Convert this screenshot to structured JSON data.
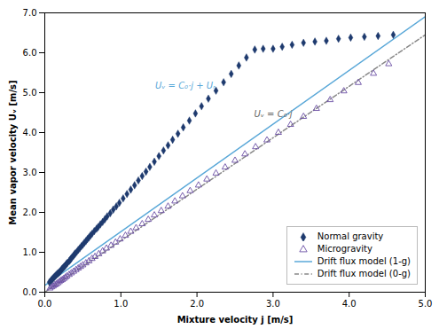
{
  "chart_data": {
    "type": "scatter",
    "xlabel": "Mixture velocity j [m/s]",
    "ylabel": "Mean vapor velocity Uᵥ [m/s]",
    "xlim": [
      0,
      5
    ],
    "ylim": [
      0,
      7
    ],
    "xticks": [
      0,
      1,
      2,
      3,
      4,
      5
    ],
    "yticks": [
      0,
      1,
      2,
      3,
      4,
      5,
      6,
      7
    ],
    "grid": false,
    "legend": "lower right",
    "annotations": [
      {
        "text": "Uᵥ = C₀·j + Uᵣ",
        "x": 1.45,
        "y": 5.1,
        "color": "#5aa8d8"
      },
      {
        "text": "Uᵥ = C₀·j",
        "x": 2.75,
        "y": 4.38,
        "color": "#666666"
      }
    ],
    "series": [
      {
        "name": "Normal gravity",
        "type": "scatter",
        "marker": "diamond",
        "color": "#1e3a6e",
        "x": [
          0.06,
          0.08,
          0.09,
          0.1,
          0.11,
          0.12,
          0.13,
          0.14,
          0.15,
          0.16,
          0.17,
          0.18,
          0.19,
          0.2,
          0.21,
          0.22,
          0.23,
          0.24,
          0.25,
          0.26,
          0.27,
          0.28,
          0.29,
          0.3,
          0.32,
          0.33,
          0.34,
          0.35,
          0.36,
          0.38,
          0.39,
          0.4,
          0.42,
          0.44,
          0.46,
          0.48,
          0.5,
          0.52,
          0.54,
          0.56,
          0.58,
          0.6,
          0.62,
          0.65,
          0.68,
          0.7,
          0.73,
          0.76,
          0.79,
          0.82,
          0.86,
          0.9,
          0.94,
          0.98,
          1.03,
          1.08,
          1.13,
          1.18,
          1.23,
          1.28,
          1.33,
          1.38,
          1.44,
          1.5,
          1.56,
          1.62,
          1.68,
          1.75,
          1.82,
          1.9,
          1.98,
          2.06,
          2.15,
          2.25,
          2.35,
          2.45,
          2.55,
          2.65,
          2.76,
          2.87,
          3.0,
          3.12,
          3.25,
          3.4,
          3.55,
          3.7,
          3.86,
          4.02,
          4.2,
          4.38,
          4.58
        ],
        "values": [
          0.25,
          0.29,
          0.31,
          0.33,
          0.35,
          0.37,
          0.39,
          0.41,
          0.43,
          0.45,
          0.47,
          0.48,
          0.5,
          0.52,
          0.54,
          0.57,
          0.59,
          0.61,
          0.63,
          0.65,
          0.67,
          0.7,
          0.72,
          0.74,
          0.78,
          0.8,
          0.83,
          0.85,
          0.88,
          0.92,
          0.95,
          0.97,
          1.01,
          1.06,
          1.1,
          1.15,
          1.19,
          1.24,
          1.28,
          1.33,
          1.37,
          1.42,
          1.46,
          1.53,
          1.59,
          1.63,
          1.7,
          1.76,
          1.83,
          1.9,
          1.98,
          2.07,
          2.15,
          2.24,
          2.35,
          2.46,
          2.57,
          2.68,
          2.8,
          2.91,
          3.02,
          3.14,
          3.27,
          3.41,
          3.55,
          3.68,
          3.82,
          3.97,
          4.13,
          4.3,
          4.48,
          4.66,
          4.85,
          5.05,
          5.26,
          5.47,
          5.68,
          5.88,
          6.08,
          6.1,
          6.1,
          6.15,
          6.2,
          6.25,
          6.28,
          6.3,
          6.35,
          6.38,
          6.4,
          6.42,
          6.45
        ]
      },
      {
        "name": "Microgravity",
        "type": "scatter",
        "marker": "open_triangle",
        "color": "#6b4fa5",
        "x": [
          0.07,
          0.09,
          0.11,
          0.13,
          0.15,
          0.17,
          0.19,
          0.21,
          0.23,
          0.25,
          0.27,
          0.29,
          0.32,
          0.35,
          0.38,
          0.41,
          0.44,
          0.47,
          0.5,
          0.54,
          0.58,
          0.62,
          0.66,
          0.71,
          0.76,
          0.81,
          0.87,
          0.93,
          0.99,
          1.06,
          1.13,
          1.2,
          1.28,
          1.36,
          1.44,
          1.53,
          1.62,
          1.71,
          1.81,
          1.91,
          2.02,
          2.13,
          2.25,
          2.37,
          2.5,
          2.63,
          2.77,
          2.92,
          3.07,
          3.23,
          3.4,
          3.57,
          3.75,
          3.93,
          4.12,
          4.32,
          4.52
        ],
        "values": [
          0.1,
          0.13,
          0.15,
          0.18,
          0.2,
          0.23,
          0.26,
          0.29,
          0.31,
          0.34,
          0.37,
          0.4,
          0.44,
          0.48,
          0.52,
          0.56,
          0.6,
          0.64,
          0.68,
          0.73,
          0.78,
          0.84,
          0.89,
          0.96,
          1.03,
          1.1,
          1.17,
          1.25,
          1.33,
          1.42,
          1.52,
          1.61,
          1.71,
          1.82,
          1.93,
          2.04,
          2.15,
          2.28,
          2.41,
          2.54,
          2.68,
          2.83,
          2.98,
          3.13,
          3.3,
          3.46,
          3.64,
          3.81,
          4.0,
          4.2,
          4.4,
          4.6,
          4.82,
          5.04,
          5.25,
          5.48,
          5.72
        ]
      },
      {
        "name": "Drift flux model (1-g)",
        "type": "line",
        "line_style": "solid",
        "color": "#5aa8d8",
        "x": [
          0,
          5
        ],
        "values": [
          0.17,
          6.905
        ]
      },
      {
        "name": "Drift flux model (0-g)",
        "type": "line",
        "line_style": "dashdot",
        "color": "#888888",
        "x": [
          0,
          5
        ],
        "values": [
          0,
          6.45
        ]
      }
    ]
  }
}
